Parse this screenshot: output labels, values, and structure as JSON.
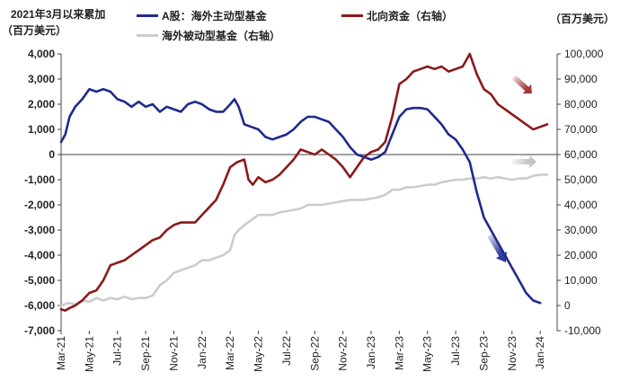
{
  "chart_data": {
    "type": "line",
    "title": "2021年3月以来累加",
    "left_unit": "（百万美元）",
    "right_unit": "（百万美元）",
    "y_left": {
      "lim": [
        -7000,
        4000
      ],
      "ticks": [
        "4,000",
        "3,000",
        "2,000",
        "1,000",
        "0",
        "-1,000",
        "-2,000",
        "-3,000",
        "-4,000",
        "-5,000",
        "-6,000",
        "-7,000"
      ]
    },
    "y_right": {
      "lim": [
        -10000,
        100000
      ],
      "ticks": [
        "100,000",
        "90,000",
        "80,000",
        "70,000",
        "60,000",
        "50,000",
        "40,000",
        "30,000",
        "20,000",
        "10,000",
        "0",
        "-10,000"
      ]
    },
    "x_ticks": [
      "Mar-21",
      "May-21",
      "Jul-21",
      "Sep-21",
      "Nov-21",
      "Jan-22",
      "Mar-22",
      "May-22",
      "Jul-22",
      "Sep-22",
      "Nov-22",
      "Jan-23",
      "Mar-23",
      "May-23",
      "Jul-23",
      "Sep-23",
      "Nov-23",
      "Jan-24"
    ],
    "x_range": [
      0,
      35.2
    ],
    "series": [
      {
        "name": "A股：海外主动型基金",
        "axis": "left",
        "color": "#1f2a8c",
        "points": [
          [
            0,
            500
          ],
          [
            0.3,
            800
          ],
          [
            0.6,
            1500
          ],
          [
            1,
            1900
          ],
          [
            1.5,
            2200
          ],
          [
            2,
            2600
          ],
          [
            2.5,
            2500
          ],
          [
            3,
            2600
          ],
          [
            3.5,
            2500
          ],
          [
            4,
            2200
          ],
          [
            4.5,
            2100
          ],
          [
            5,
            1900
          ],
          [
            5.5,
            2100
          ],
          [
            6,
            1900
          ],
          [
            6.5,
            2000
          ],
          [
            7,
            1700
          ],
          [
            7.5,
            1900
          ],
          [
            8,
            1800
          ],
          [
            8.5,
            1700
          ],
          [
            9,
            2000
          ],
          [
            9.5,
            2100
          ],
          [
            10,
            2000
          ],
          [
            10.5,
            1800
          ],
          [
            11,
            1700
          ],
          [
            11.5,
            1700
          ],
          [
            12,
            2000
          ],
          [
            12.3,
            2200
          ],
          [
            12.6,
            1900
          ],
          [
            13,
            1200
          ],
          [
            13.5,
            1100
          ],
          [
            14,
            1000
          ],
          [
            14.5,
            700
          ],
          [
            15,
            600
          ],
          [
            15.5,
            700
          ],
          [
            16,
            800
          ],
          [
            16.5,
            1000
          ],
          [
            17,
            1300
          ],
          [
            17.5,
            1500
          ],
          [
            18,
            1500
          ],
          [
            18.5,
            1400
          ],
          [
            19,
            1300
          ],
          [
            19.5,
            1000
          ],
          [
            20,
            700
          ],
          [
            20.5,
            300
          ],
          [
            21,
            0
          ],
          [
            21.5,
            -100
          ],
          [
            22,
            -200
          ],
          [
            22.5,
            -100
          ],
          [
            23,
            100
          ],
          [
            23.5,
            800
          ],
          [
            24,
            1500
          ],
          [
            24.5,
            1800
          ],
          [
            25,
            1850
          ],
          [
            25.5,
            1850
          ],
          [
            26,
            1800
          ],
          [
            26.5,
            1500
          ],
          [
            27,
            1200
          ],
          [
            27.5,
            800
          ],
          [
            28,
            600
          ],
          [
            28.5,
            200
          ],
          [
            29,
            -300
          ],
          [
            29.5,
            -1500
          ],
          [
            30,
            -2500
          ],
          [
            30.5,
            -3000
          ],
          [
            31,
            -3500
          ],
          [
            31.5,
            -4000
          ],
          [
            32,
            -4500
          ],
          [
            32.5,
            -5000
          ],
          [
            33,
            -5500
          ],
          [
            33.5,
            -5800
          ],
          [
            34,
            -5900
          ]
        ]
      },
      {
        "name": "北向资金（右轴）",
        "axis": "right",
        "color": "#8b1a1a",
        "points": [
          [
            0,
            -1500
          ],
          [
            0.3,
            -2000
          ],
          [
            0.6,
            -1000
          ],
          [
            1,
            0
          ],
          [
            1.5,
            2000
          ],
          [
            2,
            5000
          ],
          [
            2.5,
            6000
          ],
          [
            3,
            10000
          ],
          [
            3.5,
            16000
          ],
          [
            4,
            17000
          ],
          [
            4.5,
            18000
          ],
          [
            5,
            20000
          ],
          [
            5.5,
            22000
          ],
          [
            6,
            24000
          ],
          [
            6.5,
            26000
          ],
          [
            7,
            27000
          ],
          [
            7.5,
            30000
          ],
          [
            8,
            32000
          ],
          [
            8.5,
            33000
          ],
          [
            9,
            33000
          ],
          [
            9.5,
            33000
          ],
          [
            10,
            36000
          ],
          [
            10.5,
            39000
          ],
          [
            11,
            42000
          ],
          [
            11.5,
            48000
          ],
          [
            12,
            55000
          ],
          [
            12.5,
            57000
          ],
          [
            13,
            58000
          ],
          [
            13.3,
            50000
          ],
          [
            13.6,
            48000
          ],
          [
            14,
            51000
          ],
          [
            14.5,
            49000
          ],
          [
            15,
            50000
          ],
          [
            15.5,
            52000
          ],
          [
            16,
            55000
          ],
          [
            16.5,
            58000
          ],
          [
            17,
            62000
          ],
          [
            17.5,
            61000
          ],
          [
            18,
            60000
          ],
          [
            18.5,
            62000
          ],
          [
            19,
            60000
          ],
          [
            19.5,
            58000
          ],
          [
            20,
            55000
          ],
          [
            20.5,
            51000
          ],
          [
            21,
            55000
          ],
          [
            21.5,
            59000
          ],
          [
            22,
            61000
          ],
          [
            22.5,
            62000
          ],
          [
            23,
            65000
          ],
          [
            23.5,
            75000
          ],
          [
            24,
            88000
          ],
          [
            24.5,
            90000
          ],
          [
            25,
            93000
          ],
          [
            25.5,
            94000
          ],
          [
            26,
            95000
          ],
          [
            26.5,
            94000
          ],
          [
            27,
            95000
          ],
          [
            27.5,
            93000
          ],
          [
            28,
            94000
          ],
          [
            28.5,
            95000
          ],
          [
            29,
            100000
          ],
          [
            29.5,
            92000
          ],
          [
            30,
            86000
          ],
          [
            30.5,
            84000
          ],
          [
            31,
            80000
          ],
          [
            31.5,
            78000
          ],
          [
            32,
            76000
          ],
          [
            32.5,
            74000
          ],
          [
            33,
            72000
          ],
          [
            33.5,
            70000
          ],
          [
            34,
            71000
          ],
          [
            34.5,
            72000
          ]
        ]
      },
      {
        "name": "海外被动型基金（右轴）",
        "axis": "right",
        "color": "#cccccc",
        "points": [
          [
            0,
            0
          ],
          [
            0.5,
            1000
          ],
          [
            1,
            500
          ],
          [
            1.5,
            2000
          ],
          [
            2,
            1500
          ],
          [
            2.5,
            3000
          ],
          [
            3,
            2000
          ],
          [
            3.5,
            3000
          ],
          [
            4,
            2500
          ],
          [
            4.5,
            3500
          ],
          [
            5,
            2500
          ],
          [
            5.5,
            3000
          ],
          [
            6,
            3000
          ],
          [
            6.5,
            4000
          ],
          [
            7,
            8000
          ],
          [
            7.5,
            10000
          ],
          [
            8,
            13000
          ],
          [
            8.5,
            14000
          ],
          [
            9,
            15000
          ],
          [
            9.5,
            16000
          ],
          [
            10,
            18000
          ],
          [
            10.5,
            18000
          ],
          [
            11,
            19000
          ],
          [
            11.5,
            20000
          ],
          [
            12,
            22000
          ],
          [
            12.3,
            28000
          ],
          [
            12.6,
            30000
          ],
          [
            13,
            32000
          ],
          [
            13.5,
            34000
          ],
          [
            14,
            36000
          ],
          [
            14.5,
            36000
          ],
          [
            15,
            36000
          ],
          [
            15.5,
            37000
          ],
          [
            16,
            37500
          ],
          [
            16.5,
            38000
          ],
          [
            17,
            38500
          ],
          [
            17.5,
            40000
          ],
          [
            18,
            40000
          ],
          [
            18.5,
            40000
          ],
          [
            19,
            40500
          ],
          [
            19.5,
            41000
          ],
          [
            20,
            41500
          ],
          [
            20.5,
            42000
          ],
          [
            21,
            42000
          ],
          [
            21.5,
            42000
          ],
          [
            22,
            42500
          ],
          [
            22.5,
            43000
          ],
          [
            23,
            44000
          ],
          [
            23.5,
            46000
          ],
          [
            24,
            46000
          ],
          [
            24.5,
            47000
          ],
          [
            25,
            47000
          ],
          [
            25.5,
            47500
          ],
          [
            26,
            48000
          ],
          [
            26.5,
            48000
          ],
          [
            27,
            49000
          ],
          [
            27.5,
            49500
          ],
          [
            28,
            50000
          ],
          [
            28.5,
            50000
          ],
          [
            29,
            50500
          ],
          [
            29.5,
            50500
          ],
          [
            30,
            51000
          ],
          [
            30.5,
            50500
          ],
          [
            31,
            51000
          ],
          [
            31.5,
            50500
          ],
          [
            32,
            50000
          ],
          [
            32.5,
            50500
          ],
          [
            33,
            50500
          ],
          [
            33.5,
            51500
          ],
          [
            34,
            52000
          ],
          [
            34.5,
            52000
          ]
        ]
      }
    ]
  }
}
